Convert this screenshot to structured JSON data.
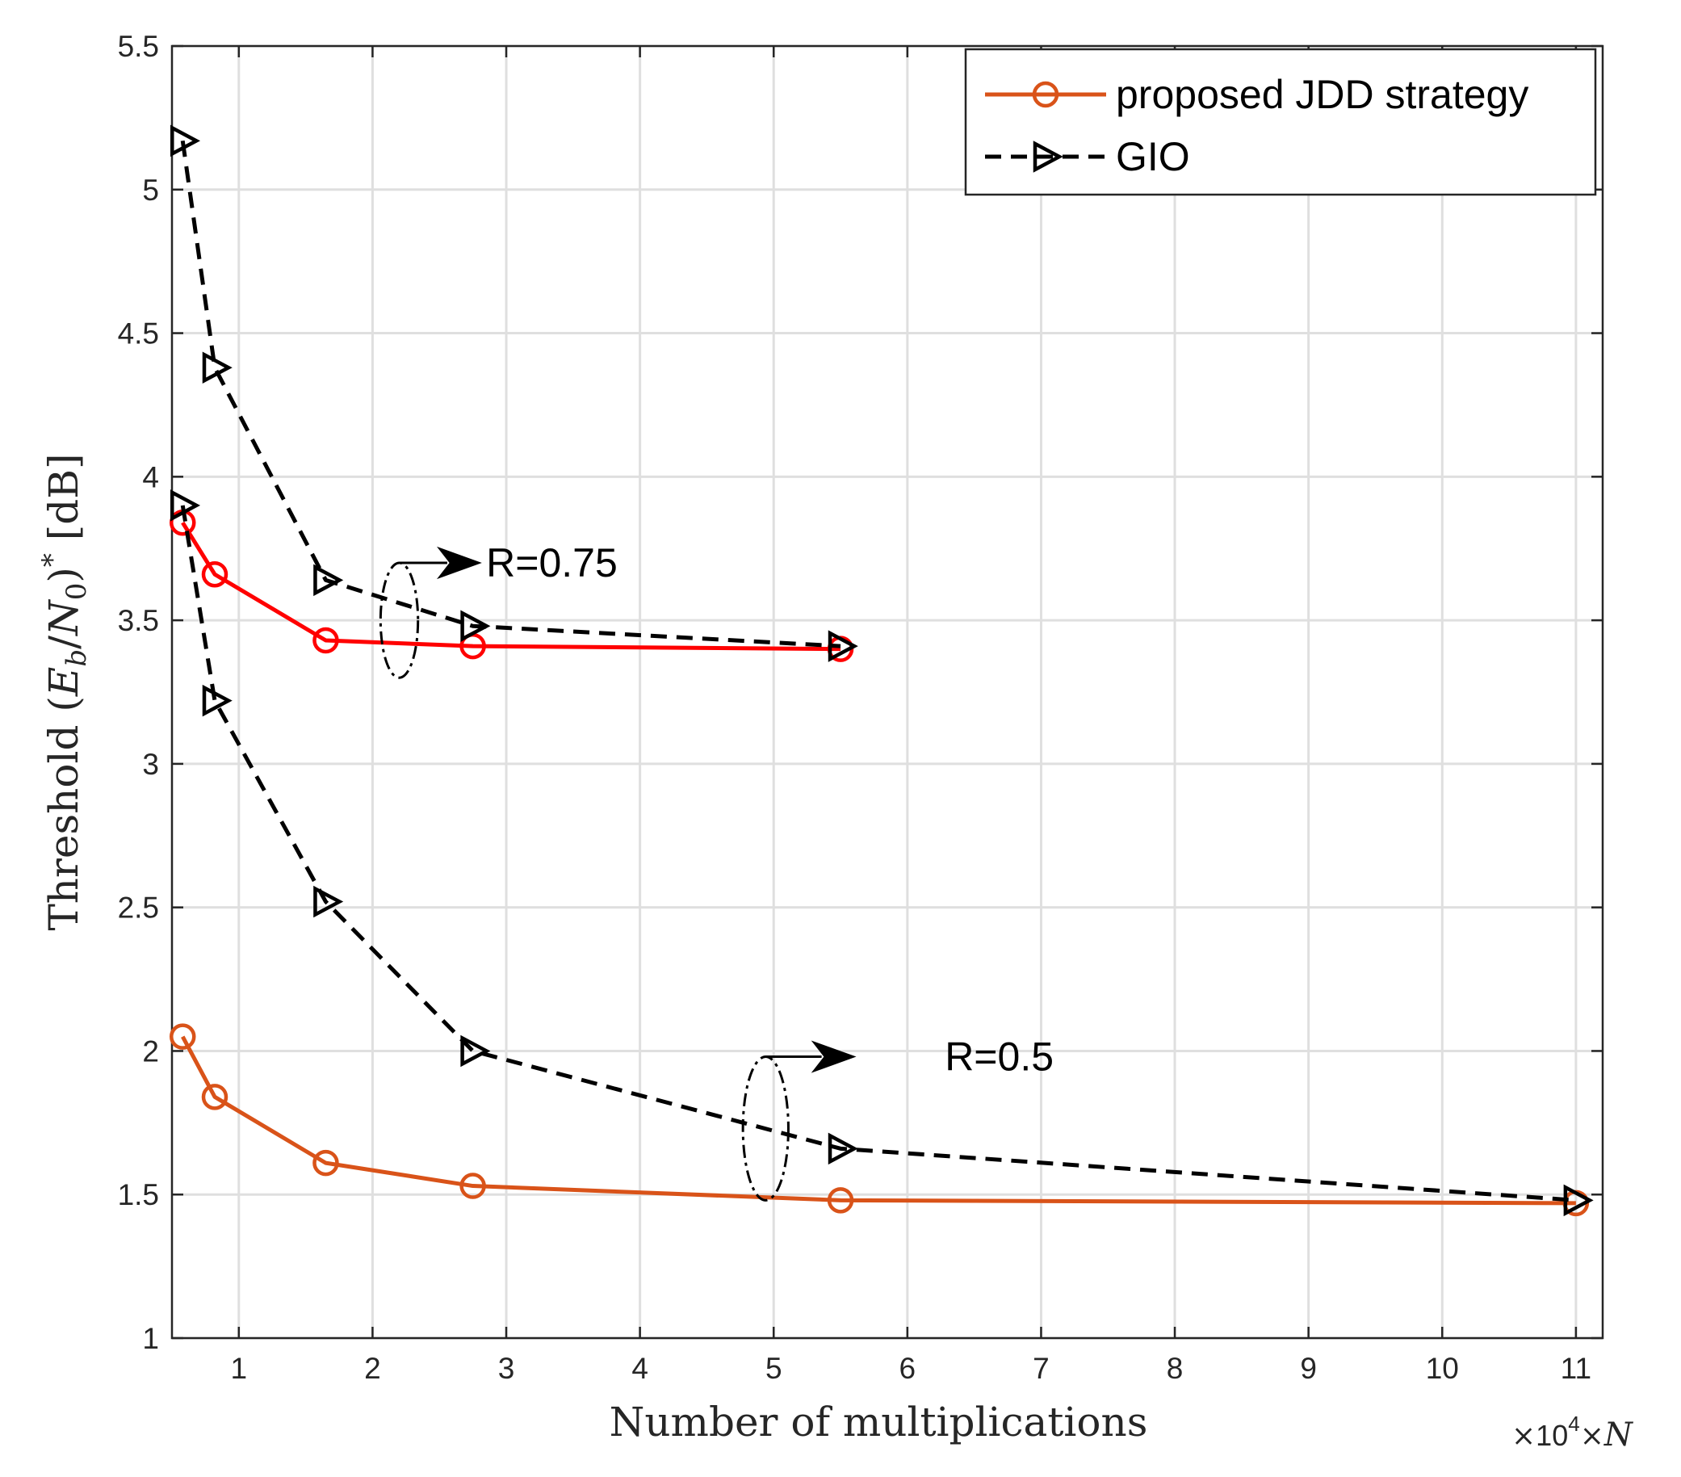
{
  "chart_data": {
    "type": "line",
    "title": "",
    "xlabel": "Number of multiplications",
    "ylabel": "Threshold (E_b/N_0)* [dB]",
    "ylabel_parts": {
      "pre": "Threshold (",
      "E": "E",
      "b": "b",
      "slash": "/",
      "N": "N",
      "zero": "0",
      "close": ")",
      "star": "*",
      "unit": " [dB]"
    },
    "x_exponent_label": {
      "times1": "×",
      "ten": "10",
      "exp": "4",
      "times2": "×",
      "N": "N"
    },
    "xlim": [
      0.5,
      11.2
    ],
    "ylim": [
      1,
      5.5
    ],
    "xticks": [
      1,
      2,
      3,
      4,
      5,
      6,
      7,
      8,
      9,
      10,
      11
    ],
    "yticks": [
      1,
      1.5,
      2,
      2.5,
      3,
      3.5,
      4,
      4.5,
      5,
      5.5
    ],
    "xtick_labels": [
      "1",
      "2",
      "3",
      "4",
      "5",
      "6",
      "7",
      "8",
      "9",
      "10",
      "11"
    ],
    "ytick_labels": [
      "1",
      "1.5",
      "2",
      "2.5",
      "3",
      "3.5",
      "4",
      "4.5",
      "5",
      "5.5"
    ],
    "grid": true,
    "legend": {
      "position": "top-right",
      "entries": [
        {
          "label": "proposed JDD strategy",
          "marker": "circle",
          "line": "solid",
          "color": "#D95319"
        },
        {
          "label": "GIO",
          "marker": "triangle-right",
          "line": "dashed",
          "color": "#000000"
        }
      ]
    },
    "series": [
      {
        "name": "proposed JDD strategy (R=0.75)",
        "color": "#FF0000",
        "line": "solid",
        "marker": "circle",
        "x": [
          0.58,
          0.82,
          1.65,
          2.75,
          5.5
        ],
        "y": [
          3.84,
          3.66,
          3.43,
          3.41,
          3.4
        ]
      },
      {
        "name": "GIO (R=0.75)",
        "color": "#000000",
        "line": "dashed",
        "marker": "triangle-right",
        "x": [
          0.58,
          0.82,
          1.65,
          2.75,
          5.5
        ],
        "y": [
          5.17,
          4.38,
          3.64,
          3.48,
          3.41
        ]
      },
      {
        "name": "proposed JDD strategy (R=0.5)",
        "color": "#D95319",
        "line": "solid",
        "marker": "circle",
        "x": [
          0.58,
          0.82,
          1.65,
          2.75,
          5.5,
          11.0
        ],
        "y": [
          2.05,
          1.84,
          1.61,
          1.53,
          1.48,
          1.47
        ]
      },
      {
        "name": "GIO (R=0.5)",
        "color": "#000000",
        "line": "dashed",
        "marker": "triangle-right",
        "x": [
          0.58,
          0.82,
          1.65,
          2.75,
          5.5,
          11.0
        ],
        "y": [
          3.9,
          3.22,
          2.52,
          2.0,
          1.66,
          1.48
        ]
      }
    ],
    "annotations": [
      {
        "text": "R=0.75",
        "ellipse_center": [
          2.2,
          3.5
        ],
        "ellipse_radii": [
          0.14,
          0.2
        ],
        "arrow_from": [
          2.2,
          3.7
        ],
        "arrow_to": [
          2.8,
          3.7
        ],
        "text_at": [
          2.85,
          3.7
        ]
      },
      {
        "text": "R=0.5",
        "ellipse_center": [
          4.94,
          1.73
        ],
        "ellipse_radii": [
          0.17,
          0.25
        ],
        "arrow_from": [
          4.94,
          1.98
        ],
        "arrow_to": [
          5.6,
          1.98
        ],
        "text_at": [
          6.28,
          1.98
        ]
      }
    ]
  }
}
